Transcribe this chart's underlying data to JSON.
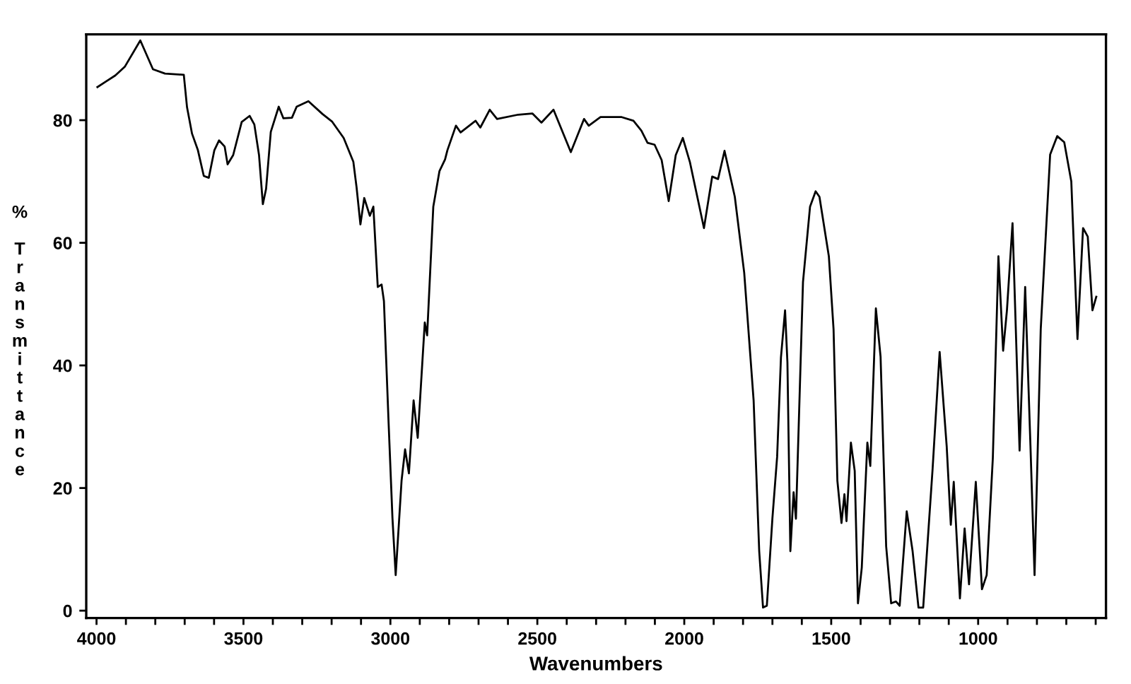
{
  "chart_data": {
    "type": "line",
    "xlabel": "Wavenumbers",
    "ylabel": "% Transmittance",
    "xlim": [
      4035,
      565
    ],
    "ylim": [
      -1.2,
      94
    ],
    "xticks": [
      4000,
      {
        "value": 3900,
        "label": null
      },
      {
        "value": 3800,
        "label": null
      },
      {
        "value": 3700,
        "label": null
      },
      {
        "value": 3600,
        "label": null
      },
      3500,
      {
        "value": 3400,
        "label": null
      },
      {
        "value": 3300,
        "label": null
      },
      {
        "value": 3200,
        "label": null
      },
      {
        "value": 3100,
        "label": null
      },
      3000,
      {
        "value": 2900,
        "label": null
      },
      {
        "value": 2800,
        "label": null
      },
      {
        "value": 2700,
        "label": null
      },
      {
        "value": 2600,
        "label": null
      },
      2500,
      {
        "value": 2400,
        "label": null
      },
      {
        "value": 2300,
        "label": null
      },
      {
        "value": 2200,
        "label": null
      },
      {
        "value": 2100,
        "label": null
      },
      2000,
      {
        "value": 1900,
        "label": null
      },
      {
        "value": 1800,
        "label": null
      },
      {
        "value": 1700,
        "label": null
      },
      {
        "value": 1600,
        "label": null
      },
      1500,
      {
        "value": 1400,
        "label": null
      },
      {
        "value": 1300,
        "label": null
      },
      {
        "value": 1200,
        "label": null
      },
      {
        "value": 1100,
        "label": null
      },
      1000,
      {
        "value": 900,
        "label": null
      },
      {
        "value": 800,
        "label": null
      },
      {
        "value": 700,
        "label": null
      },
      {
        "value": 600,
        "label": null
      }
    ],
    "yticks": [
      0,
      20,
      40,
      60,
      80
    ],
    "grid": false,
    "marker": "none",
    "line_style": "solid",
    "series": [
      {
        "color": "#000000",
        "x": [
          3997,
          3968,
          3936,
          3904,
          3851,
          3808,
          3767,
          3703,
          3692,
          3675,
          3655,
          3635,
          3618,
          3599,
          3583,
          3564,
          3554,
          3535,
          3506,
          3479,
          3463,
          3447,
          3434,
          3423,
          3407,
          3380,
          3364,
          3335,
          3319,
          3279,
          3231,
          3199,
          3159,
          3126,
          3115,
          3102,
          3089,
          3070,
          3058,
          3043,
          3030,
          3022,
          3006,
          2993,
          2982,
          2962,
          2950,
          2937,
          2921,
          2907,
          2883,
          2875,
          2854,
          2833,
          2814,
          2806,
          2777,
          2761,
          2710,
          2694,
          2662,
          2637,
          2565,
          2517,
          2486,
          2445,
          2386,
          2341,
          2325,
          2285,
          2213,
          2173,
          2146,
          2125,
          2101,
          2077,
          2053,
          2029,
          2005,
          1981,
          1933,
          1905,
          1885,
          1863,
          1828,
          1796,
          1764,
          1745,
          1732,
          1719,
          1700,
          1684,
          1671,
          1657,
          1649,
          1639,
          1628,
          1620,
          1596,
          1572,
          1553,
          1540,
          1508,
          1492,
          1479,
          1465,
          1455,
          1448,
          1433,
          1420,
          1409,
          1396,
          1377,
          1367,
          1348,
          1332,
          1313,
          1296,
          1280,
          1267,
          1243,
          1223,
          1203,
          1187,
          1155,
          1131,
          1107,
          1093,
          1083,
          1062,
          1046,
          1031,
          1008,
          987,
          971,
          950,
          931,
          915,
          902,
          883,
          859,
          840,
          822,
          808,
          787,
          755,
          731,
          707,
          683,
          662,
          643,
          627,
          611,
          598
        ],
        "values": [
          85.4,
          86.3,
          87.3,
          88.7,
          93.0,
          88.3,
          87.6,
          87.4,
          82.1,
          77.8,
          75.1,
          70.9,
          70.6,
          75.1,
          76.7,
          75.7,
          72.8,
          74.3,
          79.7,
          80.7,
          79.3,
          74.3,
          66.3,
          68.8,
          78.1,
          82.2,
          80.3,
          80.4,
          82.2,
          83.1,
          81.0,
          79.8,
          77.1,
          73.2,
          69.0,
          63.0,
          67.3,
          64.4,
          65.9,
          52.8,
          53.2,
          50.5,
          30.5,
          15.1,
          5.8,
          21.2,
          26.3,
          22.4,
          34.3,
          28.2,
          47.0,
          44.9,
          65.9,
          71.7,
          73.6,
          75.1,
          79.1,
          78.0,
          79.9,
          78.8,
          81.7,
          80.2,
          80.9,
          81.1,
          79.6,
          81.7,
          74.8,
          80.2,
          79.1,
          80.5,
          80.5,
          79.9,
          78.3,
          76.3,
          76.0,
          73.5,
          66.8,
          74.3,
          77.1,
          73.2,
          62.4,
          70.8,
          70.4,
          75.0,
          67.5,
          55.1,
          34.3,
          9.7,
          0.5,
          0.8,
          15.1,
          25.1,
          41.3,
          49.0,
          40.5,
          9.7,
          19.3,
          15.0,
          53.6,
          65.9,
          68.4,
          67.5,
          57.8,
          45.9,
          21.2,
          14.3,
          19.0,
          14.6,
          27.4,
          22.8,
          1.2,
          7.0,
          27.4,
          23.6,
          49.3,
          41.4,
          10.5,
          1.2,
          1.5,
          0.8,
          16.2,
          9.7,
          0.5,
          0.5,
          23.1,
          42.2,
          26.8,
          14.0,
          21.0,
          2.0,
          13.4,
          4.3,
          21.0,
          3.5,
          5.8,
          24.9,
          57.8,
          42.4,
          49.0,
          63.2,
          26.1,
          52.8,
          26.9,
          5.8,
          45.9,
          74.4,
          77.4,
          76.4,
          70.0,
          44.3,
          62.4,
          61.0,
          49.0,
          51.2
        ]
      }
    ]
  }
}
